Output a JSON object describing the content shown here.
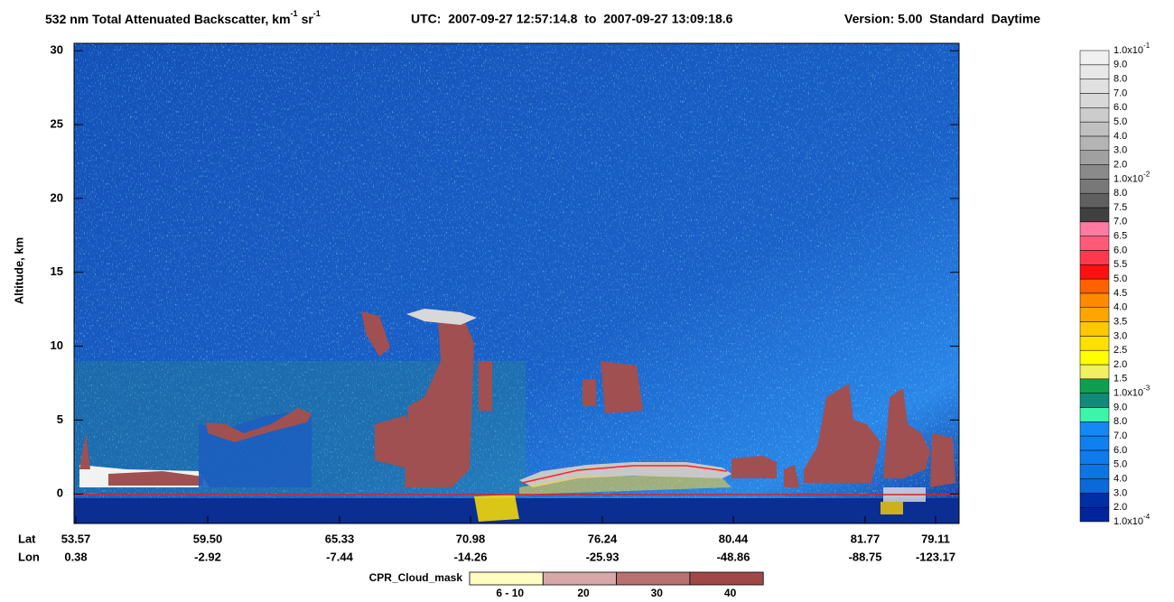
{
  "chart_data": {
    "type": "curtain",
    "title": [
      "532 nm Total Attenuated Backscatter, km",
      "-1",
      "sr",
      "-1"
    ],
    "time_range": "UTC:  2007-09-27 12:57:14.8  to  2007-09-27 13:09:18.6",
    "version": "Version: 5.00  Standard  Daytime",
    "ylabel": "Altitude, km",
    "ylim": [
      -2,
      30.5
    ],
    "yticks": [
      0,
      5,
      10,
      15,
      20,
      25,
      30
    ],
    "x_row_labels": [
      "Lat",
      "Lon"
    ],
    "lat": [
      "53.57",
      "59.50",
      "65.33",
      "70.98",
      "76.24",
      "80.44",
      "81.77",
      "79.11"
    ],
    "lon": [
      "0.38",
      "-2.92",
      "-7.44",
      "-14.26",
      "-25.93",
      "-48.86",
      "-88.75",
      "-123.17"
    ],
    "colorbar": {
      "labels": [
        {
          "label": "1.0x10",
          "sup": "-4"
        },
        "2.0",
        "3.0",
        "4.0",
        "5.0",
        "6.0",
        "7.0",
        "8.0",
        "9.0",
        {
          "label": "1.0x10",
          "sup": "-3"
        },
        "1.5",
        "2.0",
        "2.5",
        "3.0",
        "3.5",
        "4.0",
        "4.5",
        "5.0",
        "5.5",
        "6.0",
        "6.5",
        "7.0",
        "7.5",
        "8.0",
        {
          "label": "1.0x10",
          "sup": "-2"
        },
        "2.0",
        "3.0",
        "4.0",
        "5.0",
        "6.0",
        "7.0",
        "8.0",
        "9.0",
        {
          "label": "1.0x10",
          "sup": "-1"
        }
      ],
      "colors": [
        "#00259a",
        "#002ea6",
        "#0a6ad8",
        "#0c74e4",
        "#0e7aec",
        "#1080f0",
        "#1488f4",
        "#3cf5a8",
        "#118a7a",
        "#0ea050",
        "#f0f060",
        "#ffff00",
        "#ffe000",
        "#ffc800",
        "#ffa500",
        "#ff8a00",
        "#ff6000",
        "#ff1010",
        "#ff3a50",
        "#ff5a78",
        "#ff7aa0",
        "#404040",
        "#606060",
        "#787878",
        "#8a8a8a",
        "#a0a0a0",
        "#b4b4b4",
        "#c0c0c0",
        "#cccccc",
        "#d8d8d8",
        "#e0e0e0",
        "#e8e8e8",
        "#f0f0f0",
        "#f8f8f8"
      ]
    },
    "cloud_mask": {
      "title": "CPR_Cloud_mask",
      "categories": [
        "6 - 10",
        "20",
        "30",
        "40"
      ],
      "colors": [
        "#fffdc0",
        "#d8a8a8",
        "#b87070",
        "#a04848"
      ]
    }
  }
}
